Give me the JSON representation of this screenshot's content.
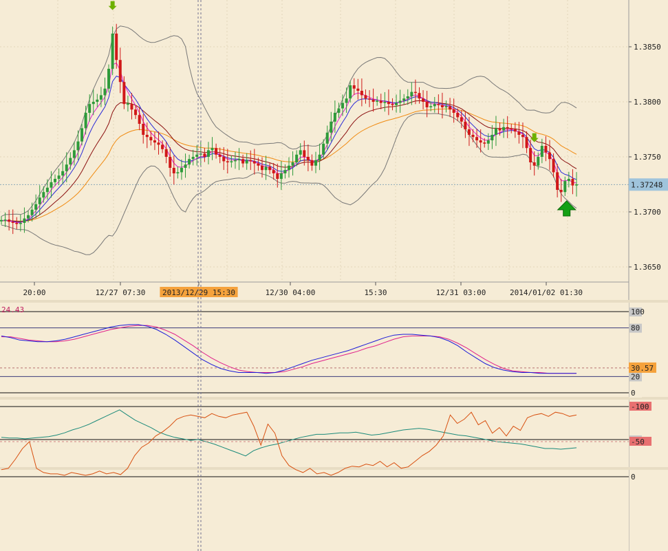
{
  "chart_data": [
    {
      "panel": "price",
      "type": "candlestick",
      "y_ticks": [
        "1.3850",
        "1.3800",
        "1.3750",
        "1.3700",
        "1.3650"
      ],
      "y_tick_values": [
        1.385,
        1.38,
        1.375,
        1.37,
        1.365
      ],
      "current_price_label": "1.37248",
      "current_price": 1.37248,
      "x_ticks": [
        "20:00",
        "12/27 07:30",
        "2013/12/29 15:30",
        "12/30 04:00",
        "15:30",
        "12/31 03:00",
        "2014/01/02 01:30"
      ],
      "crosshair_label": "2013/12/29 15:30",
      "series_close": [
        1.3692,
        1.3693,
        1.3691,
        1.369,
        1.3689,
        1.369,
        1.3694,
        1.3697,
        1.3702,
        1.3707,
        1.3713,
        1.3718,
        1.3722,
        1.3727,
        1.373,
        1.3733,
        1.3737,
        1.3743,
        1.3749,
        1.3756,
        1.3764,
        1.3776,
        1.379,
        1.3798,
        1.38,
        1.3802,
        1.3806,
        1.3812,
        1.383,
        1.3862,
        1.3838,
        1.3818,
        1.3798,
        1.3798,
        1.3793,
        1.3788,
        1.378,
        1.377,
        1.3768,
        1.3765,
        1.3763,
        1.3761,
        1.3757,
        1.375,
        1.374,
        1.3735,
        1.3736,
        1.374,
        1.3743,
        1.3748,
        1.375,
        1.3752,
        1.3753,
        1.375,
        1.3756,
        1.3758,
        1.3752,
        1.375,
        1.3746,
        1.3745,
        1.3746,
        1.3747,
        1.3748,
        1.3744,
        1.3747,
        1.3746,
        1.3744,
        1.3742,
        1.3738,
        1.3741,
        1.3738,
        1.3735,
        1.373,
        1.3735,
        1.3738,
        1.3742,
        1.3745,
        1.3752,
        1.3756,
        1.375,
        1.3747,
        1.3742,
        1.3747,
        1.3752,
        1.3762,
        1.3772,
        1.3782,
        1.379,
        1.3794,
        1.3799,
        1.3803,
        1.3815,
        1.3812,
        1.381,
        1.3806,
        1.3803,
        1.3802,
        1.38,
        1.3801,
        1.3799,
        1.38,
        1.3798,
        1.3797,
        1.3799,
        1.3801,
        1.3803,
        1.3805,
        1.3809,
        1.3808,
        1.3803,
        1.38,
        1.3795,
        1.3796,
        1.3798,
        1.3797,
        1.3795,
        1.3796,
        1.3793,
        1.379,
        1.3786,
        1.3782,
        1.3775,
        1.377,
        1.3768,
        1.3765,
        1.3763,
        1.3762,
        1.3765,
        1.377,
        1.3776,
        1.3774,
        1.3777,
        1.3776,
        1.3775,
        1.3773,
        1.377,
        1.3768,
        1.3758,
        1.3745,
        1.3742,
        1.375,
        1.376,
        1.3754,
        1.3748,
        1.3736,
        1.372,
        1.3718,
        1.3728,
        1.373,
        1.3724,
        1.3725
      ],
      "arrows": [
        {
          "type": "down",
          "index": 29,
          "color": "#6eb000"
        },
        {
          "type": "down",
          "index": 139,
          "color": "#6eb000"
        },
        {
          "type": "up",
          "index": 146,
          "color": "#14a014"
        }
      ]
    },
    {
      "panel": "stochastic",
      "type": "line",
      "label": "24.43",
      "value_label": "30.57",
      "levels": [
        "100",
        "80",
        "20",
        "0"
      ],
      "level_values": [
        100,
        80,
        20,
        0
      ],
      "k": [
        70,
        68,
        65,
        64,
        63,
        63,
        64,
        66,
        69,
        72,
        75,
        78,
        81,
        83,
        84,
        84,
        82,
        78,
        72,
        65,
        57,
        49,
        41,
        35,
        30,
        27,
        25,
        25,
        25,
        24,
        25,
        28,
        32,
        36,
        40,
        43,
        46,
        49,
        52,
        56,
        60,
        64,
        68,
        71,
        72,
        72,
        71,
        70,
        68,
        64,
        58,
        50,
        43,
        36,
        31,
        28,
        26,
        25,
        25,
        24,
        24,
        24,
        24,
        24
      ],
      "d": [
        69,
        69,
        67,
        65,
        64,
        63,
        63,
        64,
        66,
        69,
        72,
        75,
        78,
        80,
        82,
        83,
        83,
        81,
        77,
        72,
        65,
        58,
        50,
        43,
        37,
        32,
        28,
        26,
        25,
        25,
        25,
        26,
        29,
        32,
        36,
        39,
        42,
        45,
        48,
        51,
        55,
        58,
        62,
        66,
        69,
        70,
        70,
        70,
        69,
        66,
        61,
        55,
        48,
        41,
        35,
        30,
        27,
        26,
        25,
        25,
        24,
        24,
        24,
        24
      ]
    },
    {
      "panel": "oscillator",
      "type": "line",
      "level_label": ".0",
      "values": [
        3,
        2,
        2,
        1,
        2,
        3,
        4,
        6,
        9,
        13,
        16,
        20,
        25,
        30,
        35,
        40,
        33,
        26,
        21,
        16,
        10,
        6,
        3,
        1,
        -1,
        0,
        -3,
        -6,
        -10,
        -14,
        -18,
        -22,
        -15,
        -11,
        -8,
        -6,
        -3,
        0,
        3,
        5,
        7,
        7,
        8,
        9,
        9,
        10,
        8,
        6,
        7,
        9,
        11,
        13,
        14,
        15,
        14,
        12,
        10,
        8,
        6,
        5,
        3,
        1,
        -1,
        -3,
        -4,
        -5,
        -6,
        -8,
        -10,
        -12,
        -12,
        -13,
        -12,
        -11
      ]
    },
    {
      "panel": "williams_r",
      "type": "line",
      "levels": [
        "0",
        "-50",
        "-100"
      ],
      "level_values": [
        0,
        -50,
        -100
      ],
      "values": [
        -10,
        -12,
        -25,
        -40,
        -50,
        -12,
        -6,
        -4,
        -4,
        -2,
        -6,
        -4,
        -2,
        -4,
        -8,
        -4,
        -6,
        -3,
        -12,
        -30,
        -42,
        -48,
        -58,
        -64,
        -72,
        -82,
        -86,
        -88,
        -86,
        -84,
        -90,
        -86,
        -84,
        -88,
        -90,
        -92,
        -72,
        -45,
        -75,
        -62,
        -30,
        -16,
        -10,
        -6,
        -12,
        -4,
        -6,
        -2,
        -6,
        -12,
        -15,
        -14,
        -18,
        -16,
        -22,
        -14,
        -20,
        -12,
        -14,
        -22,
        -30,
        -36,
        -45,
        -58,
        -88,
        -76,
        -82,
        -92,
        -74,
        -80,
        -62,
        -70,
        -58,
        -72,
        -66,
        -84,
        -88,
        -90,
        -86,
        -92,
        -90,
        -86,
        -88
      ]
    }
  ]
}
